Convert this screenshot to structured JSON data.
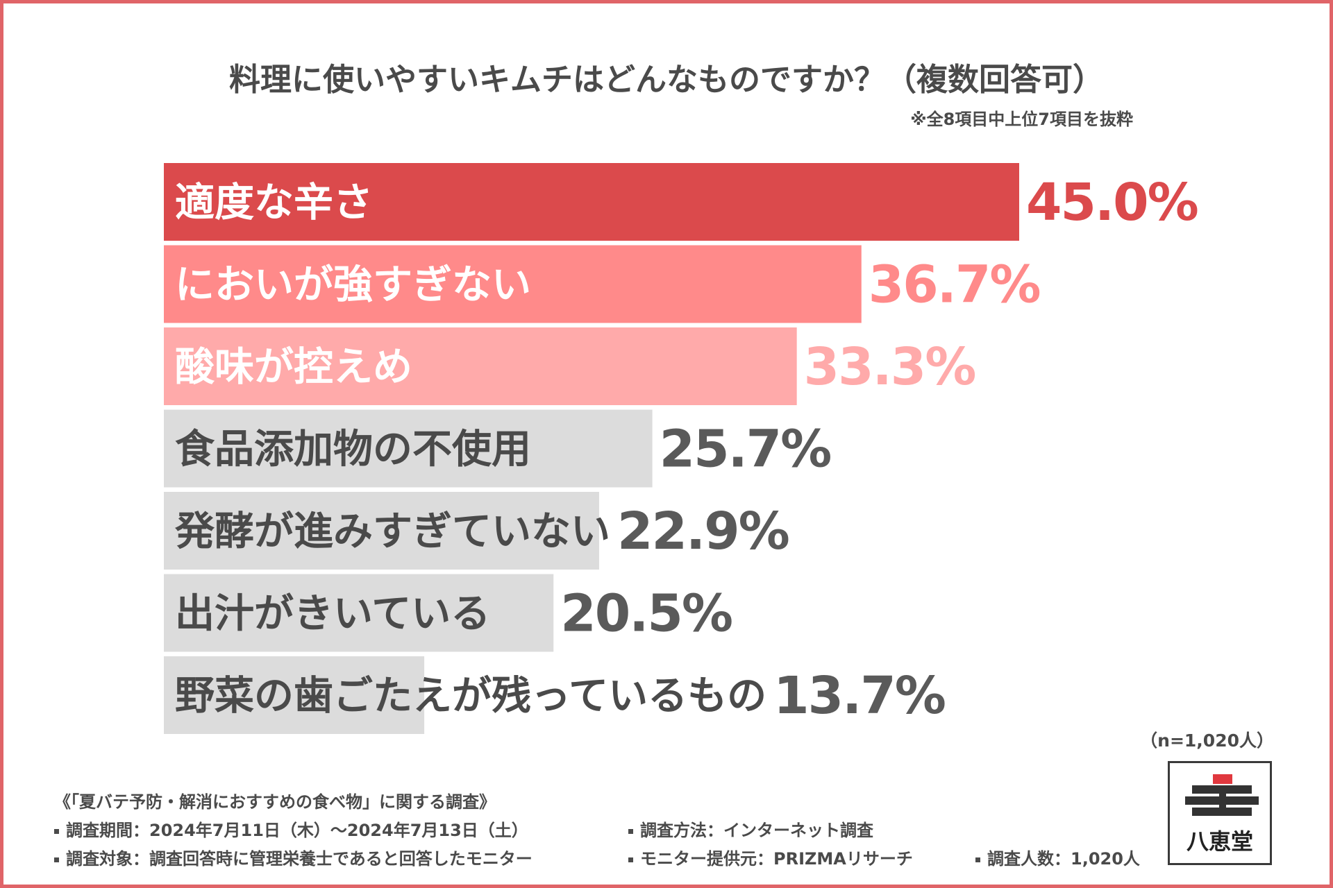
{
  "title": "料理に使いやすいキムチはどんなものですか？（複数回答可）",
  "note": "※全8項目中上位7項目を抜粋",
  "sample_size": "（n=1,020人）",
  "brand": "八恵堂",
  "colors": {
    "frame": "#e06468",
    "text": "#4a4a4a",
    "gray_bar": "#dcdcdc",
    "logo_red": "#e0383e",
    "logo_dark": "#333333"
  },
  "chart_data": {
    "type": "bar",
    "orientation": "horizontal",
    "title": "料理に使いやすいキムチはどんなものですか？（複数回答可）",
    "unit": "%",
    "categories": [
      "適度な辛さ",
      "においが強すぎない",
      "酸味が控えめ",
      "食品添加物の不使用",
      "発酵が進みすぎていない",
      "出汁がきいている",
      "野菜の歯ごたえが残っているもの"
    ],
    "values": [
      45.0,
      36.7,
      33.3,
      25.7,
      22.9,
      20.5,
      13.7
    ],
    "value_labels": [
      "45.0%",
      "36.7%",
      "33.3%",
      "25.7%",
      "22.9%",
      "20.5%",
      "13.7%"
    ],
    "bar_colors": [
      "#db4a4c",
      "#ff8a8a",
      "#ffaaaa",
      "#dcdcdc",
      "#dcdcdc",
      "#dcdcdc",
      "#dcdcdc"
    ],
    "label_colors": [
      "#ffffff",
      "#ffffff",
      "#ffffff",
      "#4a4a4a",
      "#4a4a4a",
      "#4a4a4a",
      "#4a4a4a"
    ],
    "value_colors": [
      "#db4a4c",
      "#ff8a8a",
      "#ffaaaa",
      "#5a5a5a",
      "#5a5a5a",
      "#5a5a5a",
      "#5a5a5a"
    ],
    "xlim": [
      0,
      45.0
    ]
  },
  "footer": {
    "survey_name": "《「夏バテ予防・解消におすすめの食べ物」に関する調査》",
    "period": "調査期間：2024年7月11日（木）～2024年7月13日（土）",
    "method": "調査方法：インターネット調査",
    "target": "調査対象：調査回答時に管理栄養士であると回答したモニター",
    "provider": "モニター提供元：PRIZMAリサーチ",
    "count": "調査人数：1,020人"
  }
}
